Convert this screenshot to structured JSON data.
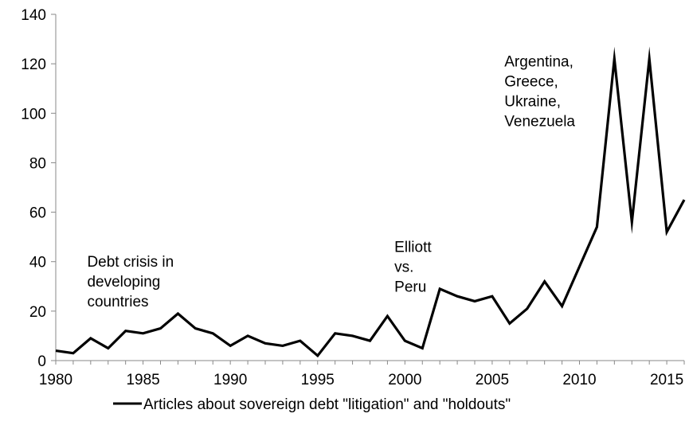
{
  "chart_data": {
    "type": "line",
    "title": "",
    "xlabel": "",
    "ylabel": "",
    "xlim": [
      1980,
      2016
    ],
    "ylim": [
      0,
      140
    ],
    "x_ticks": [
      1980,
      1985,
      1990,
      1995,
      2000,
      2005,
      2010,
      2015
    ],
    "y_ticks": [
      0,
      20,
      40,
      60,
      80,
      100,
      120,
      140
    ],
    "grid": false,
    "legend": "bottom",
    "series": [
      {
        "name": "Articles about sovereign debt \"litigation\" and \"holdouts\"",
        "color": "#000000",
        "x": [
          1980,
          1981,
          1982,
          1983,
          1984,
          1985,
          1986,
          1987,
          1988,
          1989,
          1990,
          1991,
          1992,
          1993,
          1994,
          1995,
          1996,
          1997,
          1998,
          1999,
          2000,
          2001,
          2002,
          2003,
          2004,
          2005,
          2006,
          2007,
          2008,
          2009,
          2010,
          2011,
          2012,
          2013,
          2014,
          2015,
          2016
        ],
        "y": [
          4,
          3,
          9,
          5,
          12,
          11,
          13,
          19,
          13,
          11,
          6,
          10,
          7,
          6,
          8,
          2,
          11,
          10,
          8,
          18,
          8,
          5,
          29,
          26,
          24,
          26,
          15,
          21,
          32,
          22,
          38,
          54,
          122,
          56,
          122,
          52,
          65
        ]
      }
    ],
    "annotations": [
      {
        "lines": [
          "Debt crisis in",
          "developing",
          "countries"
        ],
        "x": 1981.8,
        "y": 38
      },
      {
        "lines": [
          "Elliott",
          "vs.",
          "Peru"
        ],
        "x": 1999.4,
        "y": 44
      },
      {
        "lines": [
          "Argentina,",
          "Greece,",
          "Ukraine,",
          "Venezuela"
        ],
        "x": 2005.7,
        "y": 119
      }
    ]
  }
}
